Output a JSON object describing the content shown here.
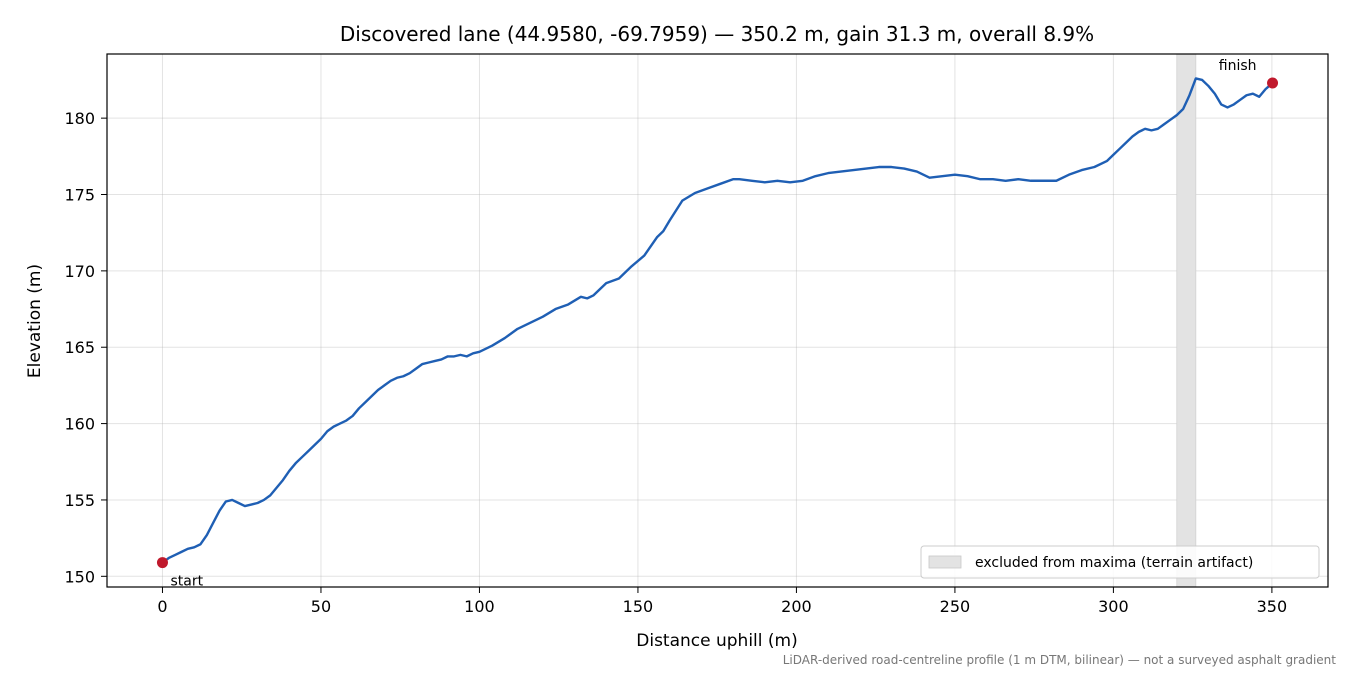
{
  "chart_data": {
    "type": "line",
    "title": "Discovered lane (44.9580, -69.7959) — 350.2 m, gain 31.3 m, overall 8.9%",
    "xlabel": "Distance uphill (m)",
    "ylabel": "Elevation (m)",
    "xlim": [
      -17.5,
      367.7
    ],
    "ylim": [
      149.3,
      184.2
    ],
    "xticks": [
      0,
      50,
      100,
      150,
      200,
      250,
      300,
      350
    ],
    "yticks": [
      150,
      155,
      160,
      165,
      170,
      175,
      180
    ],
    "grid": true,
    "legend_position": "lower-right",
    "line_color": "#1f5fb4",
    "marker_color": "#c0192c",
    "series": [
      {
        "name": "",
        "x": [
          0,
          2,
          4,
          6,
          8,
          10,
          12,
          14,
          16,
          18,
          20,
          22,
          24,
          26,
          28,
          30,
          32,
          34,
          36,
          38,
          40,
          42,
          44,
          46,
          48,
          50,
          52,
          54,
          56,
          58,
          60,
          62,
          64,
          66,
          68,
          70,
          72,
          74,
          76,
          78,
          80,
          82,
          84,
          86,
          88,
          90,
          92,
          94,
          96,
          98,
          100,
          104,
          108,
          112,
          116,
          120,
          124,
          128,
          132,
          134,
          136,
          140,
          144,
          148,
          152,
          156,
          158,
          160,
          164,
          168,
          172,
          176,
          180,
          182,
          186,
          190,
          194,
          198,
          202,
          206,
          210,
          214,
          218,
          222,
          226,
          230,
          234,
          238,
          242,
          246,
          250,
          254,
          258,
          262,
          266,
          270,
          274,
          278,
          282,
          286,
          290,
          294,
          298,
          300,
          302,
          304,
          306,
          308,
          310,
          312,
          314,
          316,
          318,
          320,
          322,
          324,
          326,
          328,
          330,
          332,
          334,
          336,
          338,
          340,
          342,
          344,
          346,
          348,
          350.2
        ],
        "y": [
          150.9,
          151.2,
          151.4,
          151.6,
          151.8,
          151.9,
          152.1,
          152.7,
          153.5,
          154.3,
          154.9,
          155.0,
          154.8,
          154.6,
          154.7,
          154.8,
          155.0,
          155.3,
          155.8,
          156.3,
          156.9,
          157.4,
          157.8,
          158.2,
          158.6,
          159.0,
          159.5,
          159.8,
          160.0,
          160.2,
          160.5,
          161.0,
          161.4,
          161.8,
          162.2,
          162.5,
          162.8,
          163.0,
          163.1,
          163.3,
          163.6,
          163.9,
          164.0,
          164.1,
          164.2,
          164.4,
          164.4,
          164.5,
          164.4,
          164.6,
          164.7,
          165.1,
          165.6,
          166.2,
          166.6,
          167.0,
          167.5,
          167.8,
          168.3,
          168.2,
          168.4,
          169.2,
          169.5,
          170.3,
          171.0,
          172.2,
          172.6,
          173.3,
          174.6,
          175.1,
          175.4,
          175.7,
          176.0,
          176.0,
          175.9,
          175.8,
          175.9,
          175.8,
          175.9,
          176.2,
          176.4,
          176.5,
          176.6,
          176.7,
          176.8,
          176.8,
          176.7,
          176.5,
          176.1,
          176.2,
          176.3,
          176.2,
          176.0,
          176.0,
          175.9,
          176.0,
          175.9,
          175.9,
          175.9,
          176.3,
          176.6,
          176.8,
          177.2,
          177.6,
          178.0,
          178.4,
          178.8,
          179.1,
          179.3,
          179.2,
          179.3,
          179.6,
          179.9,
          180.2,
          180.6,
          181.5,
          182.6,
          182.5,
          182.1,
          181.6,
          180.9,
          180.7,
          180.9,
          181.2,
          181.5,
          181.6,
          181.4,
          181.9,
          182.3
        ]
      }
    ],
    "excluded_region": {
      "x": [
        320,
        326
      ],
      "label": "excluded from maxima (terrain artifact)",
      "color": "#e3e3e3"
    },
    "markers": [
      {
        "x": 0,
        "y": 150.9,
        "label": "start"
      },
      {
        "x": 350.2,
        "y": 182.3,
        "label": "finish"
      }
    ],
    "footnote": "LiDAR-derived road-centreline profile (1 m DTM, bilinear) — not a surveyed asphalt gradient"
  }
}
